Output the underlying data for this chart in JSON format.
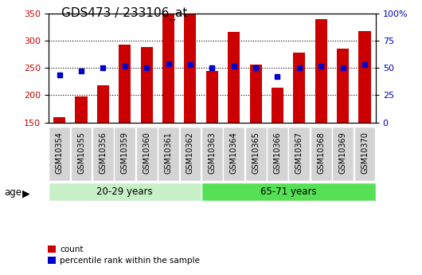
{
  "title": "GDS473 / 233106_at",
  "samples": [
    "GSM10354",
    "GSM10355",
    "GSM10356",
    "GSM10359",
    "GSM10360",
    "GSM10361",
    "GSM10362",
    "GSM10363",
    "GSM10364",
    "GSM10365",
    "GSM10366",
    "GSM10367",
    "GSM10368",
    "GSM10369",
    "GSM10370"
  ],
  "counts": [
    160,
    198,
    218,
    293,
    288,
    350,
    350,
    245,
    317,
    257,
    214,
    279,
    340,
    286,
    318
  ],
  "percentiles": [
    44,
    47,
    50,
    52,
    50,
    54,
    53,
    50,
    52,
    50,
    42,
    50,
    52,
    50,
    53
  ],
  "groups": [
    {
      "label": "20-29 years",
      "start": 0,
      "end": 7
    },
    {
      "label": "65-71 years",
      "start": 7,
      "end": 15
    }
  ],
  "group_colors": [
    "#c8f0c8",
    "#55e055"
  ],
  "count_ylim": [
    150,
    350
  ],
  "pct_ylim": [
    0,
    100
  ],
  "bar_color": "#CC0000",
  "dot_color": "#0000CC",
  "left_label_color": "#CC0000",
  "right_label_color": "#0000BB",
  "bar_width": 0.55,
  "title_fontsize": 11,
  "tick_fontsize": 8,
  "xlabel_fontsize": 7
}
